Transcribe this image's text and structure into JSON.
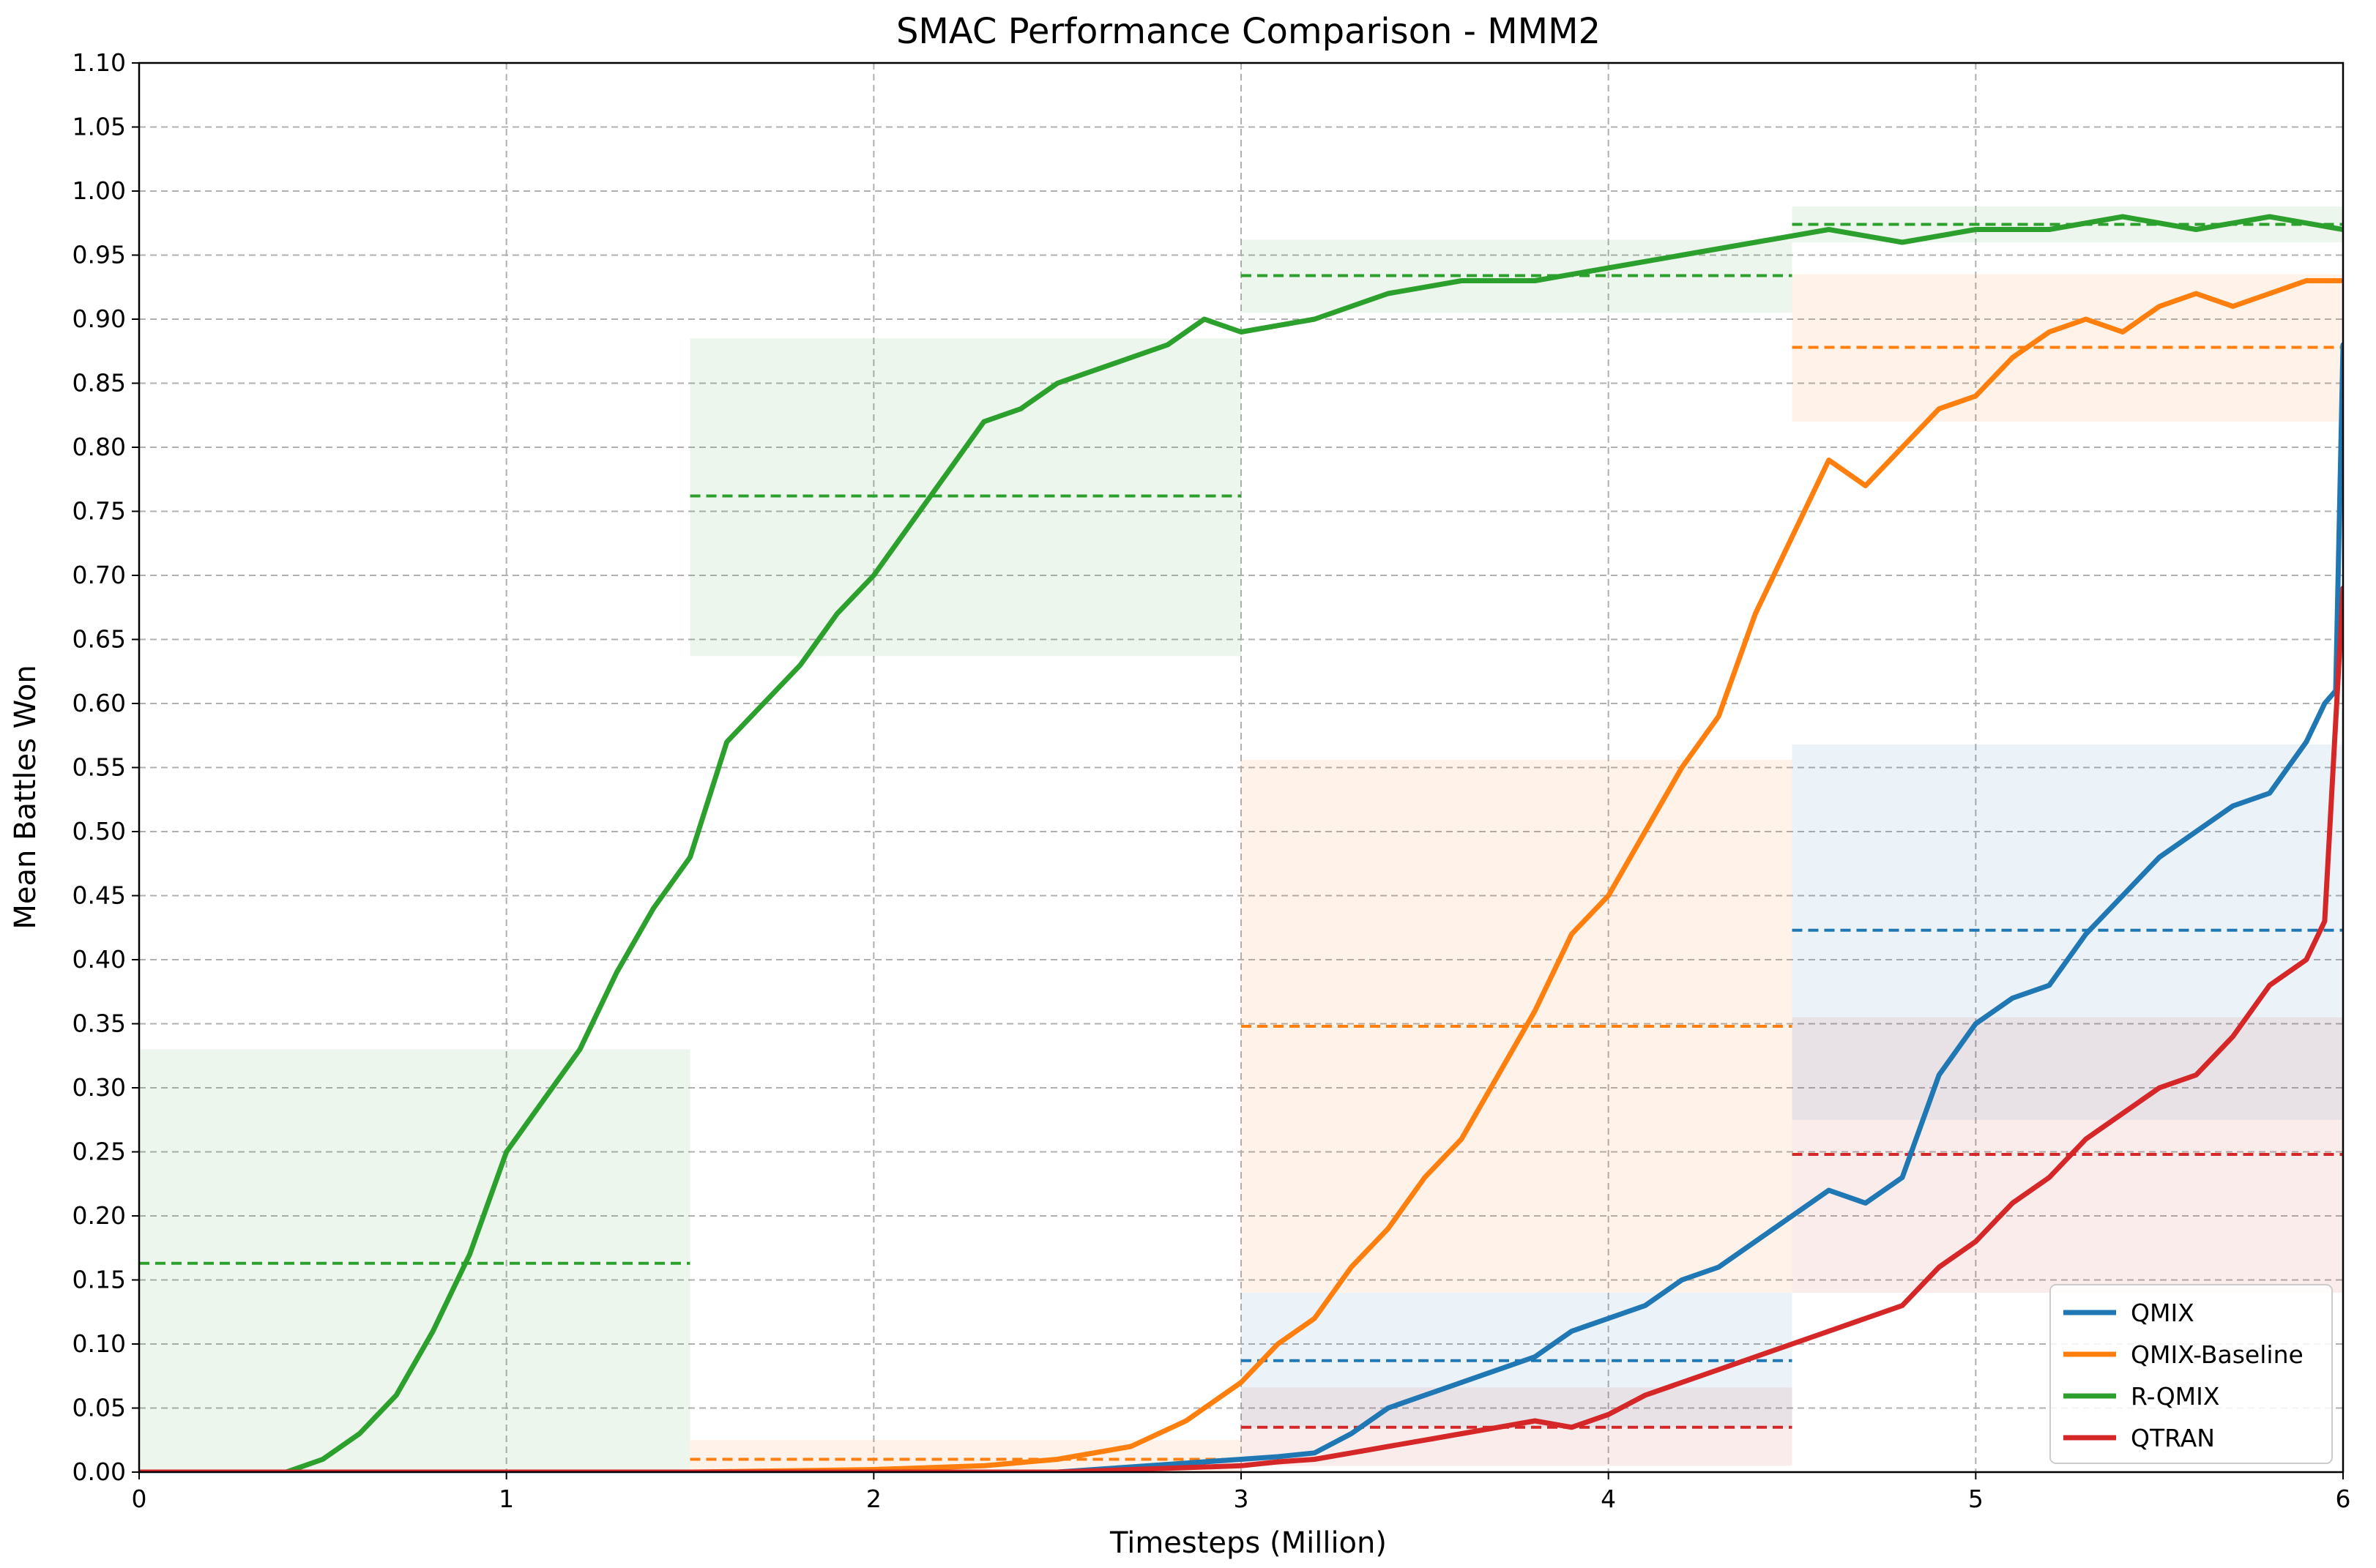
{
  "chart_data": {
    "type": "line",
    "title": "SMAC Performance Comparison - MMM2",
    "xlabel": "Timesteps (Million)",
    "ylabel": "Mean Battles Won",
    "xlim": [
      0,
      6
    ],
    "ylim": [
      0,
      1.1
    ],
    "x_ticks": [
      0,
      1,
      2,
      3,
      4,
      5,
      6
    ],
    "x_tick_labels": [
      "0",
      "1",
      "2",
      "3",
      "4",
      "5",
      "6"
    ],
    "y_ticks": [
      0,
      0.05,
      0.1,
      0.15,
      0.2,
      0.25,
      0.3,
      0.35,
      0.4,
      0.45,
      0.5,
      0.55,
      0.6,
      0.65,
      0.7,
      0.75,
      0.8,
      0.85,
      0.9,
      0.95,
      1.0,
      1.05,
      1.1
    ],
    "y_tick_labels": [
      "0.00",
      "0.05",
      "0.10",
      "0.15",
      "0.20",
      "0.25",
      "0.30",
      "0.35",
      "0.40",
      "0.45",
      "0.50",
      "0.55",
      "0.60",
      "0.65",
      "0.70",
      "0.75",
      "0.80",
      "0.85",
      "0.90",
      "0.95",
      "1.00",
      "1.05",
      "1.10"
    ],
    "grid": true,
    "legend_position": "bottom-right",
    "series": [
      {
        "name": "QMIX",
        "color": "#1f77b4",
        "x": [
          0,
          0.25,
          0.5,
          0.75,
          1.0,
          1.25,
          1.5,
          1.75,
          2.0,
          2.25,
          2.5,
          2.6,
          2.7,
          2.8,
          2.9,
          3.0,
          3.1,
          3.2,
          3.3,
          3.4,
          3.5,
          3.6,
          3.7,
          3.8,
          3.9,
          4.0,
          4.1,
          4.2,
          4.3,
          4.4,
          4.5,
          4.6,
          4.7,
          4.8,
          4.9,
          5.0,
          5.1,
          5.2,
          5.3,
          5.4,
          5.5,
          5.6,
          5.7,
          5.8,
          5.9,
          5.95,
          5.98,
          6.0
        ],
        "values": [
          0,
          0,
          0,
          0,
          0,
          0,
          0,
          0,
          0,
          0,
          0,
          0.002,
          0.004,
          0.006,
          0.008,
          0.01,
          0.012,
          0.015,
          0.03,
          0.05,
          0.06,
          0.07,
          0.08,
          0.09,
          0.11,
          0.12,
          0.13,
          0.15,
          0.16,
          0.18,
          0.2,
          0.22,
          0.21,
          0.23,
          0.31,
          0.35,
          0.37,
          0.38,
          0.42,
          0.45,
          0.48,
          0.5,
          0.52,
          0.53,
          0.57,
          0.6,
          0.61,
          0.88
        ],
        "segment_means": [
          {
            "x_start": 3.0,
            "x_end": 4.5,
            "mean": 0.087,
            "lower": 0.035,
            "upper": 0.14
          },
          {
            "x_start": 4.5,
            "x_end": 6.0,
            "mean": 0.423,
            "lower": 0.275,
            "upper": 0.568
          }
        ]
      },
      {
        "name": "QMIX-Baseline",
        "color": "#ff7f0e",
        "x": [
          0,
          0.5,
          1.0,
          1.5,
          2.0,
          2.3,
          2.5,
          2.7,
          2.85,
          3.0,
          3.1,
          3.2,
          3.3,
          3.4,
          3.5,
          3.6,
          3.7,
          3.8,
          3.9,
          4.0,
          4.1,
          4.2,
          4.3,
          4.4,
          4.5,
          4.6,
          4.7,
          4.8,
          4.9,
          5.0,
          5.1,
          5.2,
          5.3,
          5.4,
          5.5,
          5.6,
          5.7,
          5.8,
          5.9,
          6.0
        ],
        "values": [
          0,
          0,
          0,
          0,
          0.002,
          0.005,
          0.01,
          0.02,
          0.04,
          0.07,
          0.1,
          0.12,
          0.16,
          0.19,
          0.23,
          0.26,
          0.31,
          0.36,
          0.42,
          0.45,
          0.5,
          0.55,
          0.59,
          0.67,
          0.73,
          0.79,
          0.77,
          0.8,
          0.83,
          0.84,
          0.87,
          0.89,
          0.9,
          0.89,
          0.91,
          0.92,
          0.91,
          0.92,
          0.93,
          0.93
        ],
        "segment_means": [
          {
            "x_start": 1.5,
            "x_end": 3.0,
            "mean": 0.01,
            "lower": 0.0,
            "upper": 0.025
          },
          {
            "x_start": 3.0,
            "x_end": 4.5,
            "mean": 0.348,
            "lower": 0.14,
            "upper": 0.556
          },
          {
            "x_start": 4.5,
            "x_end": 6.0,
            "mean": 0.878,
            "lower": 0.82,
            "upper": 0.935
          }
        ]
      },
      {
        "name": "R-QMIX",
        "color": "#2ca02c",
        "x": [
          0,
          0.2,
          0.4,
          0.5,
          0.6,
          0.7,
          0.8,
          0.9,
          1.0,
          1.1,
          1.2,
          1.3,
          1.4,
          1.5,
          1.6,
          1.7,
          1.8,
          1.9,
          2.0,
          2.1,
          2.2,
          2.3,
          2.4,
          2.5,
          2.6,
          2.7,
          2.8,
          2.9,
          3.0,
          3.2,
          3.4,
          3.6,
          3.8,
          4.0,
          4.2,
          4.4,
          4.6,
          4.8,
          5.0,
          5.2,
          5.4,
          5.6,
          5.8,
          6.0
        ],
        "values": [
          0,
          0,
          0,
          0.01,
          0.03,
          0.06,
          0.11,
          0.17,
          0.25,
          0.29,
          0.33,
          0.39,
          0.44,
          0.48,
          0.57,
          0.6,
          0.63,
          0.67,
          0.7,
          0.74,
          0.78,
          0.82,
          0.83,
          0.85,
          0.86,
          0.87,
          0.88,
          0.9,
          0.89,
          0.9,
          0.92,
          0.93,
          0.93,
          0.94,
          0.95,
          0.96,
          0.97,
          0.96,
          0.97,
          0.97,
          0.98,
          0.97,
          0.98,
          0.97
        ],
        "segment_means": [
          {
            "x_start": 0.0,
            "x_end": 1.5,
            "mean": 0.163,
            "lower": 0.0,
            "upper": 0.33
          },
          {
            "x_start": 1.5,
            "x_end": 3.0,
            "mean": 0.762,
            "lower": 0.637,
            "upper": 0.885
          },
          {
            "x_start": 3.0,
            "x_end": 4.5,
            "mean": 0.934,
            "lower": 0.905,
            "upper": 0.962
          },
          {
            "x_start": 4.5,
            "x_end": 6.0,
            "mean": 0.974,
            "lower": 0.96,
            "upper": 0.988
          }
        ]
      },
      {
        "name": "QTRAN",
        "color": "#d62728",
        "x": [
          0,
          0.5,
          1.0,
          1.5,
          2.0,
          2.5,
          3.0,
          3.1,
          3.2,
          3.3,
          3.4,
          3.5,
          3.6,
          3.7,
          3.8,
          3.9,
          4.0,
          4.1,
          4.2,
          4.3,
          4.4,
          4.5,
          4.6,
          4.7,
          4.8,
          4.9,
          5.0,
          5.1,
          5.2,
          5.3,
          5.4,
          5.5,
          5.6,
          5.7,
          5.8,
          5.9,
          5.95,
          6.0
        ],
        "values": [
          0,
          0,
          0,
          0,
          0,
          0,
          0.005,
          0.008,
          0.01,
          0.015,
          0.02,
          0.025,
          0.03,
          0.035,
          0.04,
          0.035,
          0.045,
          0.06,
          0.07,
          0.08,
          0.09,
          0.1,
          0.11,
          0.12,
          0.13,
          0.16,
          0.18,
          0.21,
          0.23,
          0.26,
          0.28,
          0.3,
          0.31,
          0.34,
          0.38,
          0.4,
          0.43,
          0.69
        ],
        "segment_means": [
          {
            "x_start": 3.0,
            "x_end": 4.5,
            "mean": 0.035,
            "lower": 0.005,
            "upper": 0.066
          },
          {
            "x_start": 4.5,
            "x_end": 6.0,
            "mean": 0.248,
            "lower": 0.14,
            "upper": 0.355
          }
        ]
      }
    ]
  }
}
